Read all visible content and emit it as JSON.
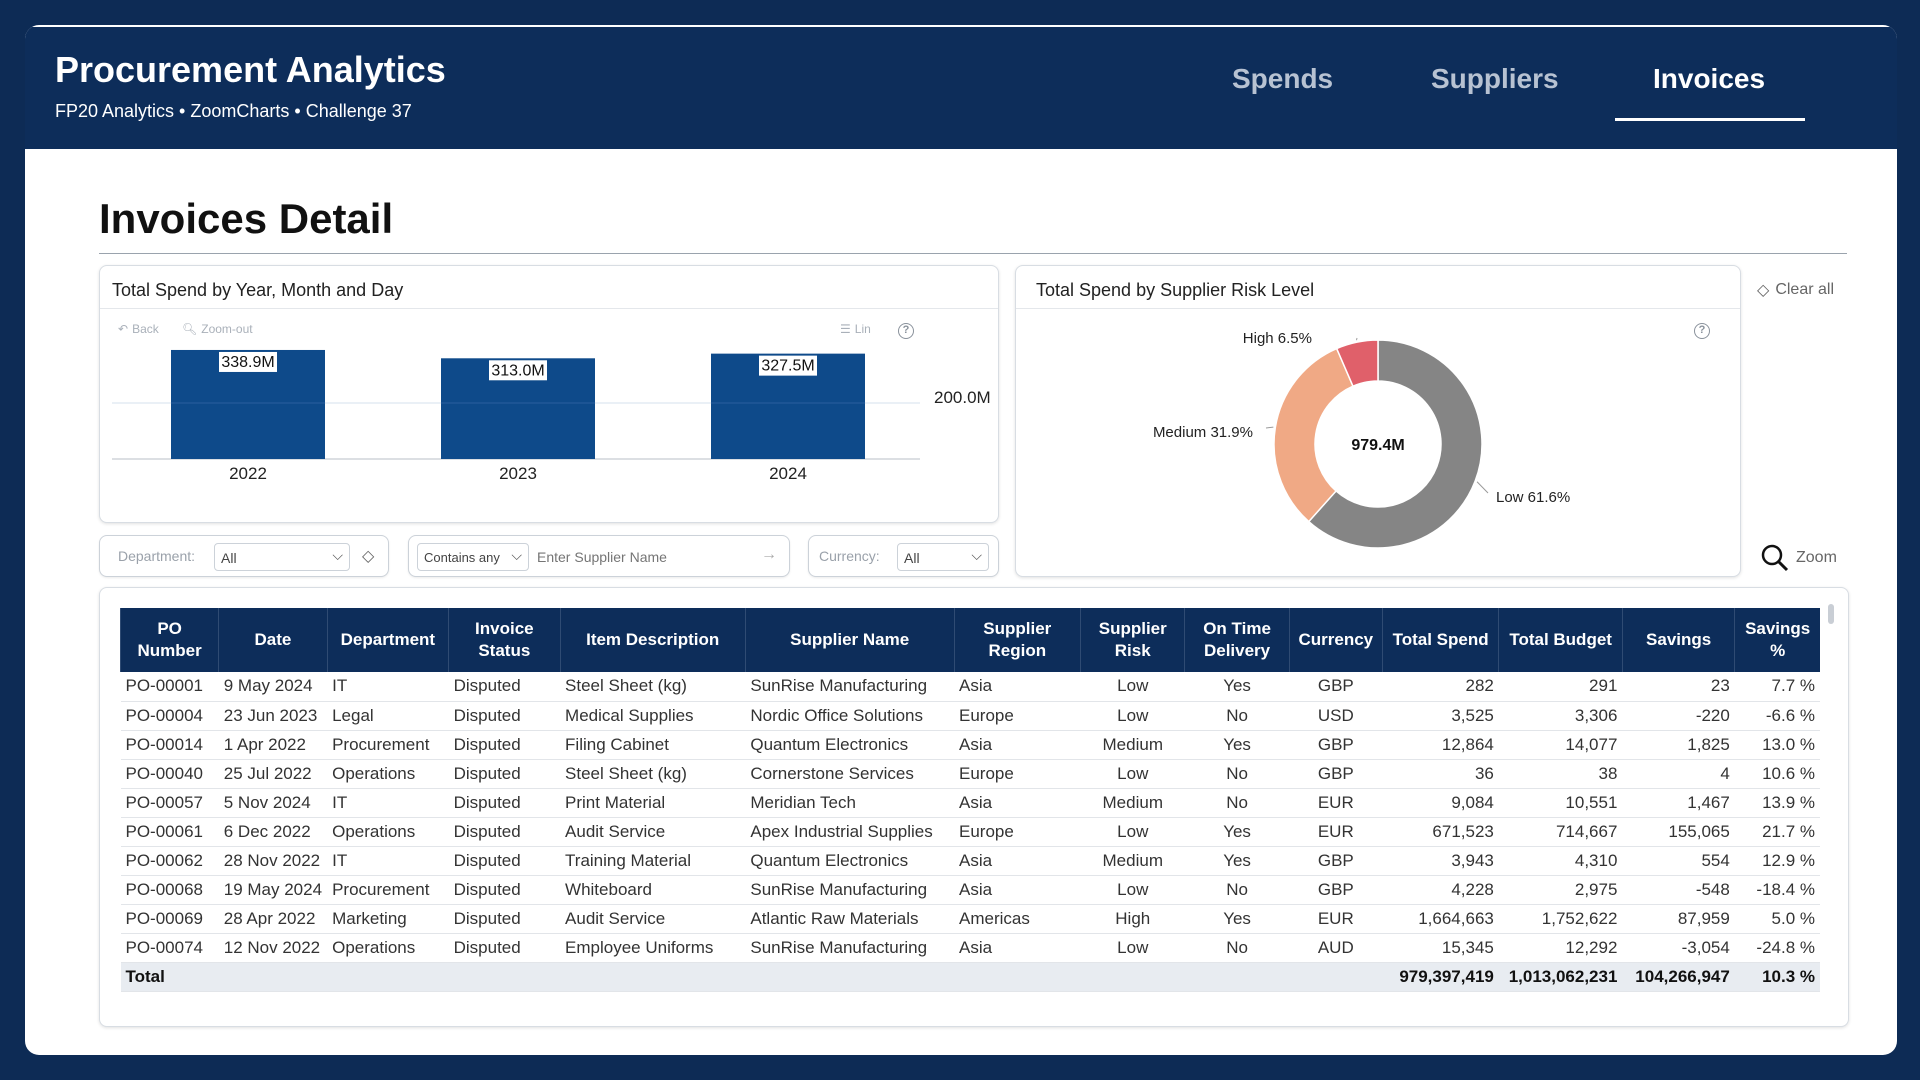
{
  "header": {
    "title": "Procurement Analytics",
    "subtitle": "FP20 Analytics  •  ZoomCharts  •  Challenge 37",
    "tabs": [
      {
        "label": "Spends",
        "active": false
      },
      {
        "label": "Suppliers",
        "active": false
      },
      {
        "label": "Invoices",
        "active": true
      }
    ]
  },
  "page": {
    "title": "Invoices Detail"
  },
  "bar_card": {
    "title": "Total Spend by Year, Month and Day",
    "toolbar": {
      "back": "Back",
      "zoom_out": "Zoom-out",
      "scale": "Lin"
    },
    "axis_tick_label": "200.0M"
  },
  "donut_card": {
    "title": "Total Spend by Supplier Risk Level",
    "center_label": "979.4M",
    "clear_all": "Clear all",
    "zoom": "Zoom"
  },
  "filters": {
    "department": {
      "label": "Department:",
      "value": "All"
    },
    "supplier": {
      "mode": "Contains any",
      "placeholder": "Enter Supplier Name"
    },
    "currency": {
      "label": "Currency:",
      "value": "All"
    }
  },
  "chart_data": [
    {
      "type": "bar",
      "title": "Total Spend by Year, Month and Day",
      "categories": [
        "2022",
        "2023",
        "2024"
      ],
      "values": [
        338.9,
        313.0,
        327.5
      ],
      "value_labels": [
        "338.9M",
        "313.0M",
        "327.5M"
      ],
      "unit": "M",
      "ylabel_tick": "200.0M",
      "grid": true,
      "color": "#0e4a8a"
    },
    {
      "type": "pie",
      "title": "Total Spend by Supplier Risk Level",
      "total_label": "979.4M",
      "slices": [
        {
          "label": "High 6.5%",
          "name": "High",
          "value": 6.5,
          "color": "#e0606a"
        },
        {
          "label": "Medium 31.9%",
          "name": "Medium",
          "value": 31.9,
          "color": "#f0a985"
        },
        {
          "label": "Low 61.6%",
          "name": "Low",
          "value": 61.6,
          "color": "#858585"
        }
      ]
    }
  ],
  "table": {
    "columns": [
      "PO Number",
      "Date",
      "Department",
      "Invoice Status",
      "Item Description",
      "Supplier Name",
      "Supplier Region",
      "Supplier Risk",
      "On Time Delivery",
      "Currency",
      "Total Spend",
      "Total Budget",
      "Savings",
      "Savings %"
    ],
    "rows": [
      [
        "PO-00001",
        "9 May 2024",
        "IT",
        "Disputed",
        "Steel Sheet (kg)",
        "SunRise Manufacturing",
        "Asia",
        "Low",
        "Yes",
        "GBP",
        "282",
        "291",
        "23",
        "7.7 %"
      ],
      [
        "PO-00004",
        "23 Jun 2023",
        "Legal",
        "Disputed",
        "Medical Supplies",
        "Nordic Office Solutions",
        "Europe",
        "Low",
        "No",
        "USD",
        "3,525",
        "3,306",
        "-220",
        "-6.6 %"
      ],
      [
        "PO-00014",
        "1 Apr 2022",
        "Procurement",
        "Disputed",
        "Filing Cabinet",
        "Quantum Electronics",
        "Asia",
        "Medium",
        "Yes",
        "GBP",
        "12,864",
        "14,077",
        "1,825",
        "13.0 %"
      ],
      [
        "PO-00040",
        "25 Jul 2022",
        "Operations",
        "Disputed",
        "Steel Sheet (kg)",
        "Cornerstone Services",
        "Europe",
        "Low",
        "No",
        "GBP",
        "36",
        "38",
        "4",
        "10.6 %"
      ],
      [
        "PO-00057",
        "5 Nov 2024",
        "IT",
        "Disputed",
        "Print Material",
        "Meridian Tech",
        "Asia",
        "Medium",
        "No",
        "EUR",
        "9,084",
        "10,551",
        "1,467",
        "13.9 %"
      ],
      [
        "PO-00061",
        "6 Dec 2022",
        "Operations",
        "Disputed",
        "Audit Service",
        "Apex Industrial Supplies",
        "Europe",
        "Low",
        "Yes",
        "EUR",
        "671,523",
        "714,667",
        "155,065",
        "21.7 %"
      ],
      [
        "PO-00062",
        "28 Nov 2022",
        "IT",
        "Disputed",
        "Training Material",
        "Quantum Electronics",
        "Asia",
        "Medium",
        "Yes",
        "GBP",
        "3,943",
        "4,310",
        "554",
        "12.9 %"
      ],
      [
        "PO-00068",
        "19 May 2024",
        "Procurement",
        "Disputed",
        "Whiteboard",
        "SunRise Manufacturing",
        "Asia",
        "Low",
        "No",
        "GBP",
        "4,228",
        "2,975",
        "-548",
        "-18.4 %"
      ],
      [
        "PO-00069",
        "28 Apr 2022",
        "Marketing",
        "Disputed",
        "Audit Service",
        "Atlantic Raw Materials",
        "Americas",
        "High",
        "Yes",
        "EUR",
        "1,664,663",
        "1,752,622",
        "87,959",
        "5.0 %"
      ],
      [
        "PO-00074",
        "12 Nov 2022",
        "Operations",
        "Disputed",
        "Employee Uniforms",
        "SunRise Manufacturing",
        "Asia",
        "Low",
        "No",
        "AUD",
        "15,345",
        "12,292",
        "-3,054",
        "-24.8 %"
      ]
    ],
    "total": {
      "label": "Total",
      "total_spend": "979,397,419",
      "total_budget": "1,013,062,231",
      "savings": "104,266,947",
      "savings_pct": "10.3 %"
    }
  }
}
